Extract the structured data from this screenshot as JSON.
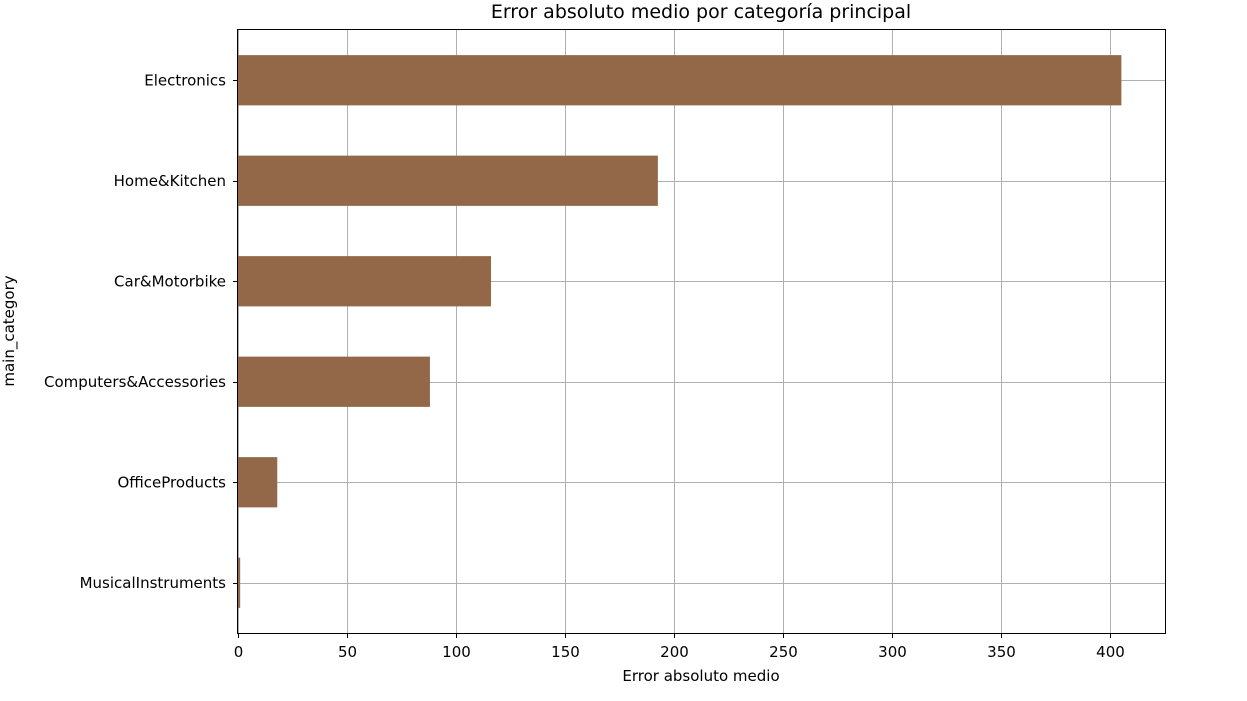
{
  "chart_data": {
    "type": "bar",
    "orientation": "horizontal",
    "title": "Error absoluto medio por categoría principal",
    "xlabel": "Error absoluto medio",
    "ylabel": "main_category",
    "categories": [
      "Electronics",
      "Home&Kitchen",
      "Car&Motorbike",
      "Computers&Accessories",
      "OfficeProducts",
      "MusicalInstruments"
    ],
    "values": [
      405,
      192.5,
      116,
      88,
      18,
      1
    ],
    "xlim": [
      0,
      425
    ],
    "xticks": [
      0,
      50,
      100,
      150,
      200,
      250,
      300,
      350,
      400
    ],
    "grid": true,
    "bar_color": "#936849",
    "legend": null
  }
}
